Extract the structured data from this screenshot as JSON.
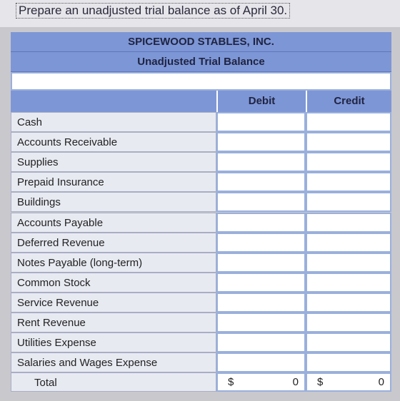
{
  "header": {
    "instruction": "Prepare an unadjusted trial balance as of April 30."
  },
  "table": {
    "company": "SPICEWOOD STABLES, INC.",
    "subtitle": "Unadjusted Trial Balance",
    "columns": [
      "Debit",
      "Credit"
    ],
    "rows": [
      "Cash",
      "Accounts Receivable",
      "Supplies",
      "Prepaid Insurance",
      "Buildings",
      "Accounts Payable",
      "Deferred Revenue",
      "Notes Payable (long-term)",
      "Common Stock",
      "Service Revenue",
      "Rent Revenue",
      "Utilities Expense",
      "Salaries and Wages Expense"
    ],
    "total": {
      "label": "Total",
      "debit_symbol": "$",
      "debit": 0,
      "credit_symbol": "$",
      "credit": 0
    }
  }
}
